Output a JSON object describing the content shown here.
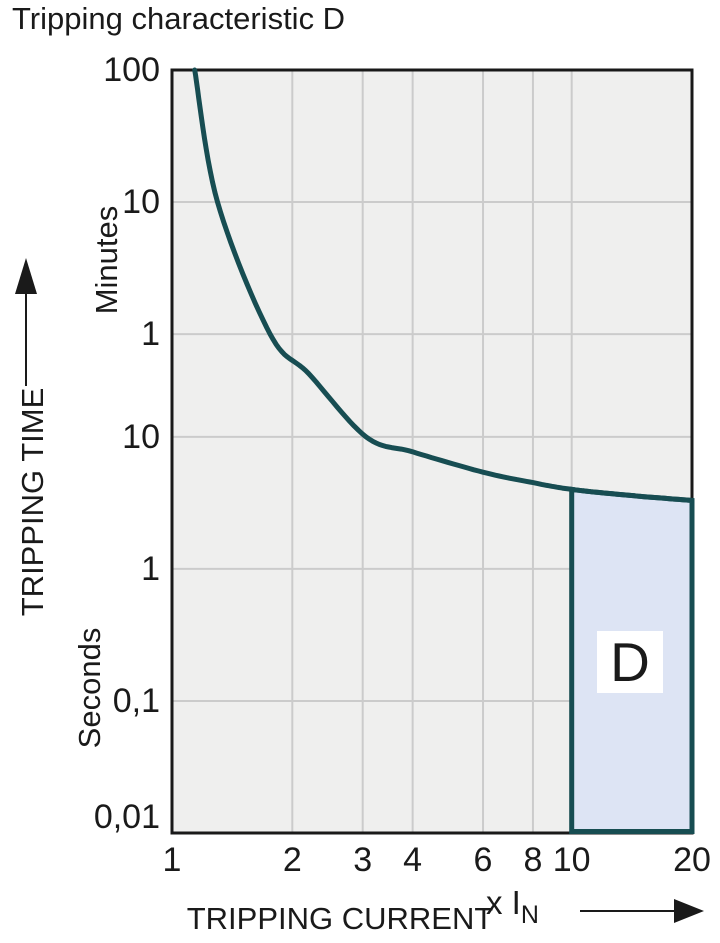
{
  "chart_data": {
    "type": "line",
    "title": "Tripping characteristic D",
    "xlabel": "TRIPPING CURRENT",
    "ylabel": "TRIPPING TIME",
    "x_unit": {
      "text": "x I",
      "sub": "N"
    },
    "x_scale": "log",
    "y_scale": "log",
    "grid": true,
    "xlim": [
      1,
      20
    ],
    "ylim_seconds": [
      0.01,
      6000
    ],
    "x_ticks": [
      {
        "label": "1",
        "v": 1
      },
      {
        "label": "2",
        "v": 2
      },
      {
        "label": "3",
        "v": 3
      },
      {
        "label": "4",
        "v": 4
      },
      {
        "label": "6",
        "v": 6
      },
      {
        "label": "8",
        "v": 8
      },
      {
        "label": "10",
        "v": 10
      },
      {
        "label": "20",
        "v": 20
      }
    ],
    "y_ticks": [
      {
        "label": "100",
        "v": 6000,
        "unit": "minutes"
      },
      {
        "label": "10",
        "v": 600,
        "unit": "minutes"
      },
      {
        "label": "1",
        "v": 60,
        "unit": "minutes"
      },
      {
        "label": "10",
        "v": 10,
        "unit": "seconds"
      },
      {
        "label": "1",
        "v": 1,
        "unit": "seconds"
      },
      {
        "label": "0,1",
        "v": 0.1,
        "unit": "seconds"
      },
      {
        "label": "0,01",
        "v": 0.01,
        "unit": "seconds"
      }
    ],
    "y_unit_labels": [
      "Minutes",
      "Seconds"
    ],
    "curve": {
      "name": "tripping-characteristic-D",
      "points_x_multiple_vs_seconds": [
        [
          1.14,
          6000
        ],
        [
          1.3,
          600
        ],
        [
          1.76,
          60
        ],
        [
          2.2,
          30
        ],
        [
          3.06,
          10
        ],
        [
          4,
          7.7
        ],
        [
          6,
          5.4
        ],
        [
          8,
          4.5
        ],
        [
          10,
          4.0
        ],
        [
          14,
          3.6
        ],
        [
          20,
          3.3
        ]
      ]
    },
    "region": {
      "label": "D",
      "x_from": 10,
      "x_to": 20,
      "t_bottom": 0.01
    },
    "colors": {
      "curve": "#174d52",
      "region_fill": "#dde4f4",
      "region_border": "#174d52",
      "plot_bg": "#efefee",
      "grid": "#cbcbcb",
      "border": "#191919",
      "text": "#1a1a1a",
      "region_label_bg": "#ffffff"
    }
  }
}
